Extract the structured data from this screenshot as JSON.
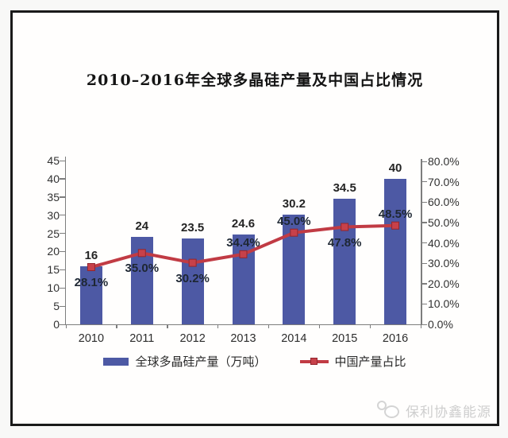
{
  "frame": {
    "title": "2010–2016年全球多晶硅产量及中国占比情况"
  },
  "chart_data": {
    "type": "bar",
    "subtype": "bar+line combo, dual axis",
    "title": "2010–2016年全球多晶硅产量及中国占比情况",
    "categories": [
      "2010",
      "2011",
      "2012",
      "2013",
      "2014",
      "2015",
      "2016"
    ],
    "series": [
      {
        "name": "全球多晶硅产量（万吨）",
        "type": "bar",
        "axis": "left",
        "color": "#4d59a4",
        "values": [
          16,
          24,
          23.5,
          24.6,
          30.2,
          34.5,
          40
        ],
        "labels": [
          "16",
          "24",
          "23.5",
          "24.6",
          "30.2",
          "34.5",
          "40"
        ]
      },
      {
        "name": "中国产量占比",
        "type": "line",
        "axis": "right",
        "color": "#c13b44",
        "marker_color": "#c7414a",
        "marker_edge": "#92262e",
        "values": [
          28.1,
          35.0,
          30.2,
          34.4,
          45.0,
          47.8,
          48.5
        ],
        "labels": [
          "28.1%",
          "35.0%",
          "30.2%",
          "34.4%",
          "45.0%",
          "47.8%",
          "48.5%"
        ],
        "label_positions": [
          "below",
          "below",
          "below",
          "above",
          "above",
          "below",
          "above"
        ]
      }
    ],
    "left_axis": {
      "min": 0,
      "max": 45,
      "step": 5,
      "tick_labels": [
        "45",
        "40",
        "35",
        "30",
        "25",
        "20",
        "15",
        "10",
        "5",
        "0"
      ]
    },
    "right_axis": {
      "min": 0,
      "max": 80,
      "step": 10,
      "tick_labels": [
        "80.0%",
        "70.0%",
        "60.0%",
        "50.0%",
        "40.0%",
        "30.0%",
        "20.0%",
        "10.0%",
        "0.0%"
      ]
    },
    "legend": {
      "position": "bottom",
      "entries": [
        "全球多晶硅产量（万吨）",
        "中国产量占比"
      ]
    },
    "grid": false,
    "xlabel": "",
    "ylabel": ""
  },
  "footer": {
    "brand": "保利协鑫能源"
  }
}
